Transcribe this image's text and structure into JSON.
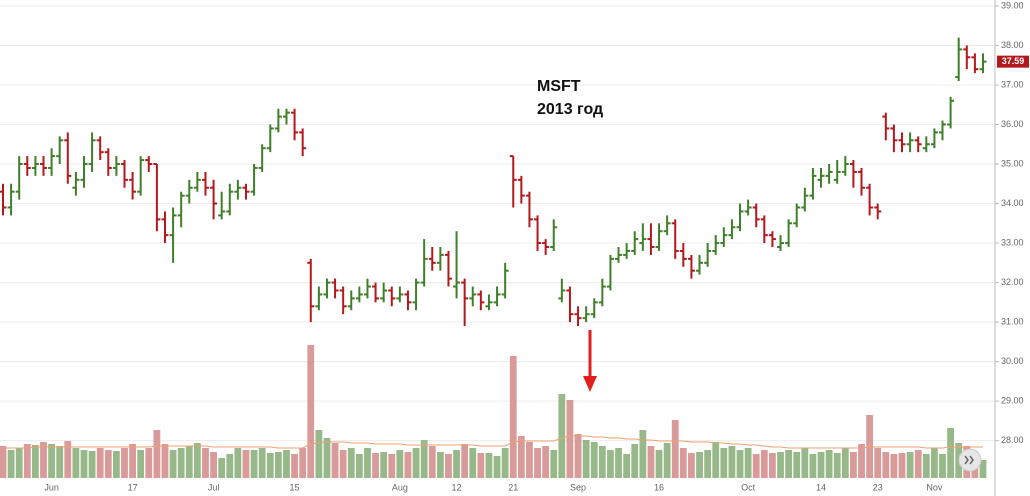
{
  "chart_data": {
    "type": "ohlc",
    "annotations": [
      "MSFT",
      "2013 год"
    ],
    "categories": [
      null,
      null,
      null,
      null,
      null,
      null,
      "Jun",
      null,
      null,
      null,
      null,
      null,
      null,
      null,
      null,
      null,
      "17",
      null,
      null,
      null,
      null,
      null,
      null,
      null,
      null,
      null,
      "Jul",
      null,
      null,
      null,
      null,
      null,
      null,
      null,
      null,
      null,
      "15",
      null,
      null,
      null,
      null,
      null,
      null,
      null,
      null,
      null,
      null,
      null,
      null,
      "Aug",
      null,
      null,
      null,
      null,
      null,
      null,
      "12",
      null,
      null,
      null,
      null,
      null,
      null,
      "21",
      null,
      null,
      null,
      null,
      null,
      null,
      null,
      "Sep",
      null,
      null,
      null,
      null,
      null,
      null,
      null,
      null,
      null,
      "16",
      null,
      null,
      null,
      null,
      null,
      null,
      null,
      null,
      null,
      null,
      "Oct",
      null,
      null,
      null,
      null,
      null,
      null,
      null,
      null,
      "14",
      null,
      null,
      null,
      null,
      null,
      null,
      "23",
      null,
      null,
      null,
      null,
      null,
      null,
      "Nov",
      null,
      null,
      null,
      null,
      null,
      null
    ],
    "open": [
      34.3,
      33.9,
      34.3,
      35.0,
      34.9,
      35.0,
      34.9,
      35.2,
      35.6,
      34.4,
      34.6,
      35.0,
      35.6,
      35.3,
      34.9,
      35.0,
      34.6,
      34.3,
      35.1,
      35.0,
      33.6,
      33.2,
      33.7,
      34.2,
      34.4,
      34.6,
      34.4,
      33.7,
      33.8,
      34.3,
      34.4,
      34.3,
      34.9,
      35.4,
      35.9,
      36.2,
      36.3,
      35.8,
      32.5,
      31.4,
      31.7,
      32.0,
      31.8,
      31.4,
      31.6,
      31.7,
      31.9,
      31.6,
      31.8,
      31.6,
      31.7,
      31.5,
      32.0,
      32.6,
      32.5,
      32.7,
      31.9,
      32.0,
      31.6,
      31.7,
      31.4,
      31.5,
      31.7,
      35.2,
      34.6,
      34.2,
      33.6,
      33.0,
      32.9,
      31.6,
      31.8,
      31.2,
      31.1,
      31.2,
      31.5,
      31.9,
      32.6,
      32.7,
      32.8,
      33.0,
      33.1,
      32.9,
      33.3,
      33.5,
      32.8,
      32.6,
      32.3,
      32.5,
      32.8,
      33.0,
      33.2,
      33.4,
      33.8,
      33.9,
      33.6,
      33.2,
      32.9,
      33.0,
      33.5,
      33.9,
      34.2,
      34.6,
      34.7,
      34.6,
      34.8,
      35.0,
      34.8,
      34.4,
      33.9,
      36.2,
      35.9,
      35.6,
      35.5,
      35.6,
      35.4,
      35.5,
      35.8,
      36.0,
      37.2,
      37.9,
      37.7,
      37.4
    ],
    "high": [
      34.5,
      34.5,
      35.2,
      35.2,
      35.2,
      35.2,
      35.4,
      35.7,
      35.8,
      34.8,
      35.2,
      35.8,
      35.7,
      35.4,
      35.2,
      35.1,
      34.8,
      35.2,
      35.2,
      35.0,
      33.8,
      33.9,
      34.3,
      34.6,
      34.8,
      34.8,
      34.6,
      34.3,
      34.5,
      34.6,
      34.5,
      35.0,
      35.5,
      36.0,
      36.4,
      36.4,
      36.4,
      35.9,
      32.6,
      31.9,
      32.1,
      32.1,
      31.9,
      31.8,
      31.9,
      32.1,
      32.0,
      32.0,
      31.9,
      31.9,
      31.8,
      32.1,
      33.1,
      32.9,
      32.9,
      32.8,
      33.3,
      32.1,
      31.9,
      31.8,
      31.7,
      31.9,
      32.5,
      35.2,
      34.7,
      34.3,
      33.7,
      33.1,
      33.6,
      32.1,
      31.9,
      31.4,
      31.4,
      31.6,
      32.1,
      32.7,
      32.9,
      33.0,
      33.3,
      33.5,
      33.5,
      33.5,
      33.7,
      33.6,
      33.0,
      32.7,
      32.7,
      33.0,
      33.2,
      33.4,
      33.6,
      34.0,
      34.1,
      34.0,
      33.7,
      33.3,
      33.2,
      33.6,
      34.0,
      34.4,
      34.9,
      34.9,
      35.0,
      35.1,
      35.2,
      35.1,
      34.9,
      34.5,
      34.0,
      36.3,
      36.0,
      35.8,
      35.8,
      35.7,
      35.7,
      35.9,
      36.1,
      36.7,
      38.2,
      38.0,
      37.8,
      37.8
    ],
    "low": [
      33.7,
      33.7,
      34.1,
      34.7,
      34.7,
      34.7,
      34.7,
      35.0,
      34.5,
      34.2,
      34.4,
      34.8,
      35.1,
      34.7,
      34.7,
      34.4,
      34.1,
      34.2,
      34.8,
      33.3,
      33.0,
      32.5,
      33.4,
      34.0,
      34.3,
      34.2,
      33.6,
      33.6,
      33.7,
      34.1,
      34.1,
      34.2,
      34.8,
      35.3,
      35.8,
      36.0,
      35.6,
      35.2,
      31.0,
      31.3,
      31.6,
      31.6,
      31.2,
      31.3,
      31.5,
      31.6,
      31.5,
      31.5,
      31.4,
      31.5,
      31.3,
      31.3,
      31.9,
      32.3,
      32.3,
      31.9,
      31.6,
      30.9,
      31.4,
      31.3,
      31.3,
      31.4,
      31.6,
      33.9,
      34.0,
      33.4,
      32.8,
      32.7,
      32.8,
      31.5,
      31.0,
      30.9,
      31.0,
      31.1,
      31.4,
      31.8,
      32.5,
      32.6,
      32.7,
      32.8,
      32.7,
      32.8,
      33.2,
      32.6,
      32.4,
      32.1,
      32.2,
      32.4,
      32.7,
      32.9,
      33.1,
      33.3,
      33.7,
      33.4,
      33.0,
      32.9,
      32.8,
      32.9,
      33.4,
      33.8,
      34.1,
      34.4,
      34.5,
      34.5,
      34.7,
      34.4,
      34.2,
      33.7,
      33.6,
      35.6,
      35.3,
      35.3,
      35.3,
      35.3,
      35.3,
      35.4,
      35.6,
      35.9,
      37.1,
      37.4,
      37.3,
      37.3
    ],
    "close": [
      33.9,
      34.3,
      35.0,
      34.9,
      35.0,
      34.9,
      35.2,
      35.6,
      34.7,
      34.6,
      35.0,
      35.6,
      35.3,
      34.9,
      35.0,
      34.6,
      34.3,
      35.1,
      35.0,
      33.6,
      33.2,
      33.7,
      34.2,
      34.4,
      34.6,
      34.4,
      34.0,
      33.8,
      34.3,
      34.4,
      34.3,
      34.9,
      35.4,
      35.9,
      36.2,
      36.3,
      35.8,
      35.4,
      31.4,
      31.7,
      32.0,
      31.8,
      31.4,
      31.6,
      31.7,
      31.9,
      31.6,
      31.8,
      31.6,
      31.7,
      31.5,
      32.0,
      32.6,
      32.5,
      32.7,
      32.1,
      32.0,
      31.6,
      31.7,
      31.5,
      31.5,
      31.7,
      32.3,
      34.6,
      34.2,
      33.6,
      33.0,
      32.9,
      33.4,
      31.8,
      31.2,
      31.1,
      31.2,
      31.5,
      31.9,
      32.6,
      32.7,
      32.8,
      33.1,
      33.1,
      32.9,
      33.3,
      33.5,
      32.8,
      32.6,
      32.3,
      32.5,
      32.8,
      33.0,
      33.2,
      33.4,
      33.8,
      33.9,
      33.6,
      33.2,
      33.1,
      33.0,
      33.5,
      33.9,
      34.2,
      34.7,
      34.7,
      34.8,
      34.8,
      35.0,
      34.8,
      34.4,
      33.9,
      33.8,
      35.9,
      35.6,
      35.5,
      35.6,
      35.5,
      35.5,
      35.8,
      36.0,
      36.6,
      37.9,
      37.7,
      37.4,
      37.59
    ],
    "volume": [
      32,
      28,
      30,
      34,
      33,
      36,
      34,
      32,
      37,
      30,
      28,
      27,
      30,
      28,
      27,
      30,
      34,
      28,
      30,
      48,
      34,
      28,
      30,
      32,
      35,
      30,
      26,
      20,
      24,
      30,
      28,
      28,
      30,
      25,
      26,
      28,
      24,
      30,
      133,
      48,
      40,
      35,
      28,
      30,
      24,
      30,
      25,
      26,
      24,
      28,
      26,
      30,
      38,
      32,
      26,
      24,
      28,
      34,
      30,
      25,
      25,
      22,
      30,
      122,
      42,
      36,
      30,
      32,
      28,
      84,
      78,
      44,
      38,
      36,
      32,
      28,
      30,
      24,
      34,
      48,
      32,
      28,
      35,
      58,
      30,
      25,
      26,
      28,
      36,
      30,
      32,
      28,
      30,
      24,
      28,
      25,
      26,
      28,
      26,
      30,
      24,
      26,
      28,
      25,
      30,
      26,
      34,
      63,
      30,
      26,
      24,
      25,
      26,
      28,
      24,
      30,
      24,
      50,
      35,
      32,
      26,
      18
    ],
    "volume_ma": [
      30,
      30,
      30,
      30,
      31,
      31,
      31,
      31,
      31,
      31,
      31,
      31,
      31,
      31,
      31,
      31,
      31,
      31,
      31,
      32,
      32,
      32,
      32,
      32,
      32,
      32,
      31,
      31,
      31,
      31,
      31,
      31,
      31,
      31,
      30,
      30,
      30,
      30,
      34,
      35,
      36,
      36,
      36,
      35,
      35,
      35,
      34,
      34,
      34,
      34,
      33,
      33,
      33,
      33,
      33,
      33,
      33,
      33,
      33,
      32,
      32,
      32,
      32,
      36,
      37,
      37,
      37,
      37,
      37,
      40,
      42,
      42,
      42,
      41,
      41,
      40,
      40,
      39,
      39,
      38,
      38,
      37,
      37,
      37,
      37,
      36,
      36,
      36,
      35,
      35,
      34,
      34,
      33,
      33,
      32,
      31,
      31,
      30,
      30,
      30,
      30,
      30,
      30,
      30,
      30,
      30,
      30,
      31,
      31,
      31,
      31,
      31,
      31,
      31,
      30,
      30,
      30,
      31,
      31,
      31,
      31,
      31
    ],
    "up_color": "#3f7f2a",
    "down_color": "#b3181c",
    "volume_up_color": "#97b98a",
    "volume_down_color": "#d99a9a",
    "volume_ma_color": "#f0a070",
    "last_price_color": "#b3181c",
    "ylim": [
      26.6,
      39.15
    ],
    "yticks": [
      {
        "value": 28,
        "label": "28.00"
      },
      {
        "value": 29,
        "label": "29.00"
      },
      {
        "value": 30,
        "label": "30.00"
      },
      {
        "value": 31,
        "label": "31.00"
      },
      {
        "value": 32,
        "label": "32.00"
      },
      {
        "value": 33,
        "label": "33.00"
      },
      {
        "value": 34,
        "label": "34.00"
      },
      {
        "value": 35,
        "label": "35.00"
      },
      {
        "value": 36,
        "label": "36.00"
      },
      {
        "value": 37,
        "label": "37.00"
      },
      {
        "value": 38,
        "label": "38.00"
      },
      {
        "value": 39,
        "label": "39.00"
      }
    ],
    "grid": true
  }
}
